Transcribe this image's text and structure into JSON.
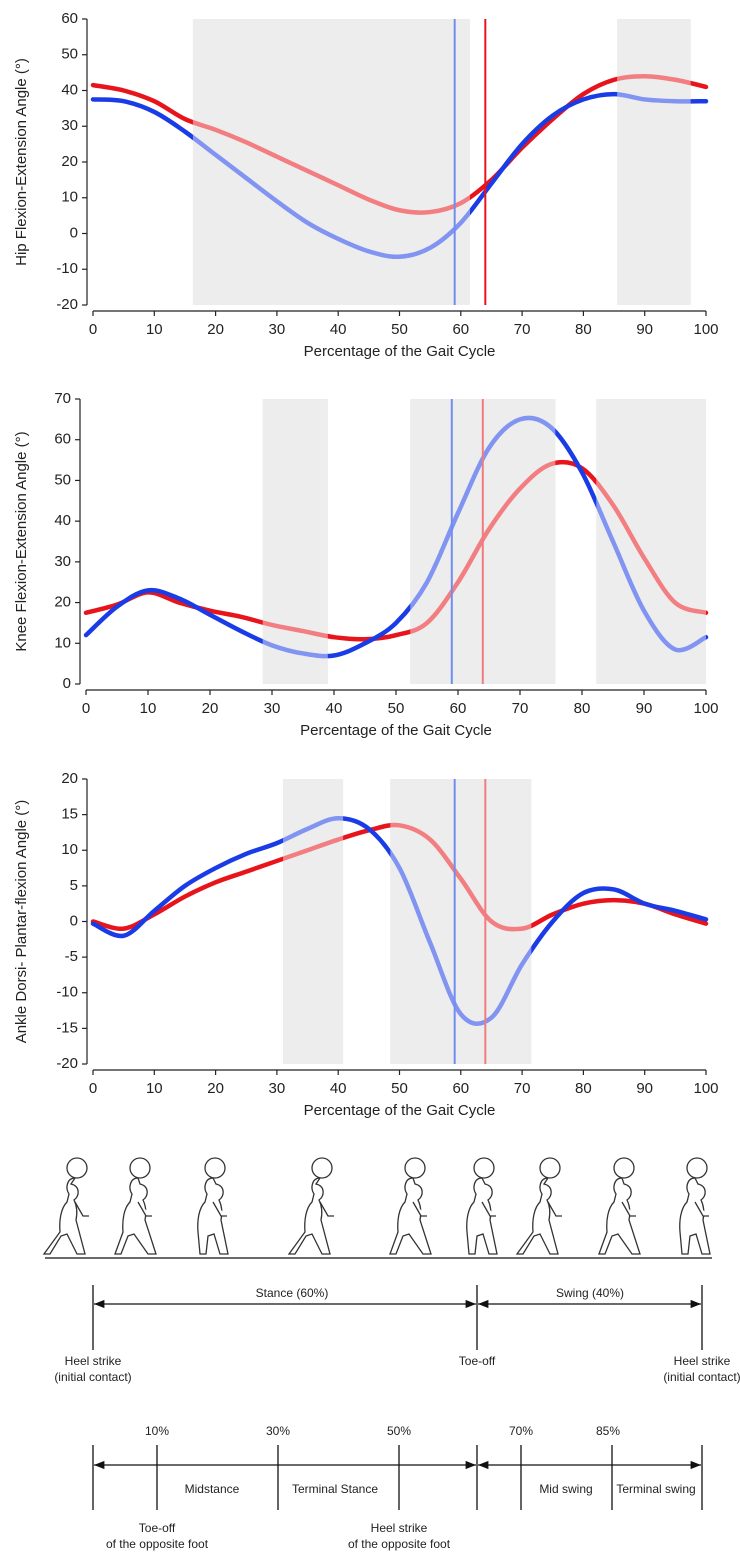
{
  "chart_data": [
    {
      "type": "line",
      "y_label": "Hip Flexion-Extension Angle (°)",
      "x_label": "Percentage of the Gait Cycle",
      "x": [
        0,
        5,
        10,
        15,
        20,
        25,
        30,
        35,
        40,
        45,
        50,
        55,
        60,
        65,
        70,
        75,
        80,
        85,
        90,
        95,
        100
      ],
      "series": [
        {
          "color": "#e8141c",
          "values": [
            41.5,
            40,
            37,
            32,
            29,
            25.5,
            21.5,
            17.5,
            13.5,
            9.5,
            6.5,
            6,
            8.5,
            15,
            24,
            32,
            39,
            43,
            44,
            43,
            41
          ]
        },
        {
          "color": "#1a3ce6",
          "values": [
            37.5,
            37,
            34,
            28.5,
            22,
            15.5,
            9,
            3,
            -1.5,
            -5,
            -6.5,
            -4,
            3,
            14,
            25,
            33,
            37.5,
            39,
            37.5,
            37,
            37
          ]
        }
      ],
      "shaded_regions": [
        [
          16.3,
          61.5
        ],
        [
          85.5,
          97.5
        ]
      ],
      "vlines": [
        {
          "x": 59,
          "color": "#6f8ef0"
        },
        {
          "x": 64,
          "color": "#e8141c"
        }
      ],
      "xlim": [
        0,
        100
      ],
      "xticks": [
        0,
        10,
        20,
        30,
        40,
        50,
        60,
        70,
        80,
        90,
        100
      ],
      "ylim": [
        -20,
        60
      ],
      "yticks": [
        -20,
        -10,
        0,
        10,
        20,
        30,
        40,
        50,
        60
      ]
    },
    {
      "type": "line",
      "y_label": "Knee Flexion-Extension Angle (°)",
      "x_label": "Percentage of the Gait Cycle",
      "x": [
        0,
        5,
        10,
        15,
        20,
        25,
        30,
        35,
        40,
        45,
        50,
        55,
        60,
        65,
        70,
        75,
        80,
        85,
        90,
        95,
        100
      ],
      "series": [
        {
          "color": "#e8141c",
          "values": [
            17.5,
            19.5,
            22.5,
            20,
            18,
            16.5,
            14.5,
            13,
            11.5,
            11,
            12,
            15,
            25,
            38,
            48,
            54,
            53,
            44,
            31,
            20,
            17.5
          ]
        },
        {
          "color": "#1a3ce6",
          "values": [
            12,
            19,
            23,
            21,
            17,
            13,
            9.5,
            7.5,
            7,
            10,
            15,
            25,
            42,
            58,
            65,
            63,
            52,
            35,
            18,
            8.5,
            11.5
          ]
        }
      ],
      "shaded_regions": [
        [
          28.5,
          39
        ],
        [
          52.3,
          75.7
        ],
        [
          82.3,
          100
        ]
      ],
      "vlines": [
        {
          "x": 59,
          "color": "#6f8ef0"
        },
        {
          "x": 64,
          "color": "#f07c80"
        }
      ],
      "xlim": [
        0,
        100
      ],
      "xticks": [
        0,
        10,
        20,
        30,
        40,
        50,
        60,
        70,
        80,
        90,
        100
      ],
      "ylim": [
        0,
        70
      ],
      "yticks": [
        0,
        10,
        20,
        30,
        40,
        50,
        60,
        70
      ]
    },
    {
      "type": "line",
      "y_label": "Ankle Dorsi- Plantar-flexion Angle (°)",
      "x_label": "Percentage of the Gait Cycle",
      "x": [
        0,
        5,
        10,
        15,
        20,
        25,
        30,
        35,
        40,
        45,
        50,
        55,
        60,
        65,
        70,
        75,
        80,
        85,
        90,
        95,
        100
      ],
      "series": [
        {
          "color": "#e8141c",
          "values": [
            0,
            -1,
            1,
            3.5,
            5.5,
            7,
            8.5,
            10,
            11.5,
            12.8,
            13.5,
            11.5,
            6,
            0,
            -1,
            1,
            2.5,
            3,
            2.5,
            1,
            -0.3
          ]
        },
        {
          "color": "#1a3ce6",
          "values": [
            -0.3,
            -2,
            1.5,
            5,
            7.5,
            9.5,
            11,
            13,
            14.5,
            13,
            7.5,
            -3,
            -13,
            -13.5,
            -6,
            0,
            4,
            4.5,
            2.5,
            1.5,
            0.3
          ]
        }
      ],
      "shaded_regions": [
        [
          31,
          40.8
        ],
        [
          48.5,
          71.5
        ]
      ],
      "vlines": [
        {
          "x": 59,
          "color": "#6f8ef0"
        },
        {
          "x": 64,
          "color": "#f07c80"
        }
      ],
      "xlim": [
        0,
        100
      ],
      "xticks": [
        0,
        10,
        20,
        30,
        40,
        50,
        60,
        70,
        80,
        90,
        100
      ],
      "ylim": [
        -20,
        20
      ],
      "yticks": [
        -20,
        -15,
        -10,
        -5,
        0,
        5,
        10,
        15,
        20
      ]
    }
  ],
  "gait_diagram": {
    "phases": [
      "Stance (60%)",
      "Swing (40%)"
    ],
    "events": [
      [
        "Heel strike",
        "(initial contact)"
      ],
      [
        "Toe-off"
      ],
      [
        "Heel strike",
        "(initial contact)"
      ]
    ],
    "percentages": [
      "10%",
      "30%",
      "50%",
      "70%",
      "85%"
    ],
    "subphases": [
      "Midstance",
      "Terminal Stance",
      "Mid swing",
      "Terminal swing"
    ],
    "opposite_events": [
      [
        "Toe-off",
        "of the opposite foot"
      ],
      [
        "Heel strike",
        "of the opposite foot"
      ]
    ]
  }
}
